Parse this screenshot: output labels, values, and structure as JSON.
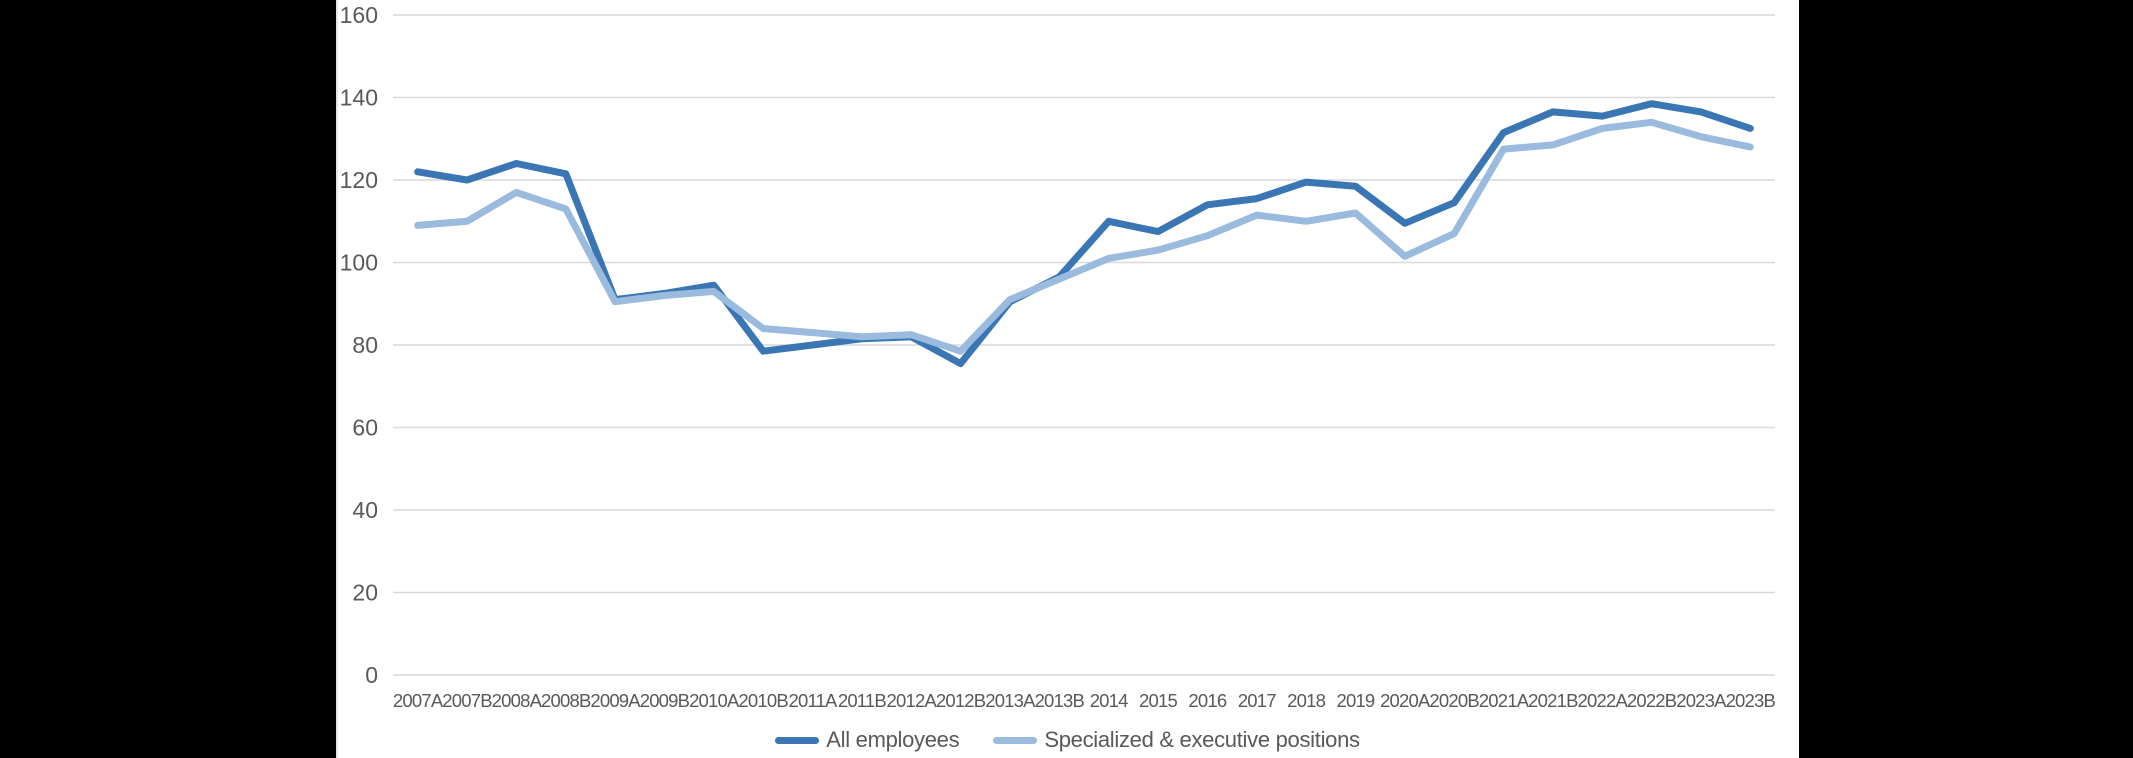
{
  "canvas": {
    "background_color": "#000000",
    "panel_background_color": "#ffffff"
  },
  "chart_data": {
    "type": "line",
    "title": "",
    "xlabel": "",
    "ylabel": "",
    "ylim": [
      0,
      160
    ],
    "yticks": [
      0,
      20,
      40,
      60,
      80,
      100,
      120,
      140,
      160
    ],
    "grid": true,
    "gridline_color": "#d9d9d9",
    "axis_text_color": "#595959",
    "legend_position": "bottom-center",
    "categories": [
      "2007A",
      "2007B",
      "2008A",
      "2008B",
      "2009A",
      "2009B",
      "2010A",
      "2010B",
      "2011A",
      "2011B",
      "2012A",
      "2012B",
      "2013A",
      "2013B",
      "2014",
      "2015",
      "2016",
      "2017",
      "2018",
      "2019",
      "2020A",
      "2020B",
      "2021A",
      "2021B",
      "2022A",
      "2022B",
      "2023A",
      "2023B"
    ],
    "series": [
      {
        "name": "All employees",
        "color": "#3a76b4",
        "values": [
          122,
          120,
          124,
          121.5,
          91,
          92.5,
          94.5,
          78.5,
          80,
          81.5,
          82,
          75.5,
          90.5,
          96.5,
          110,
          107.5,
          114,
          115.5,
          119.5,
          118.5,
          109.5,
          114.5,
          131.5,
          136.5,
          135.5,
          138.5,
          136.5,
          132.5
        ]
      },
      {
        "name": "Specialized & executive positions",
        "color": "#9abade",
        "values": [
          109,
          110,
          117,
          113,
          90.5,
          92,
          93,
          84,
          83,
          82,
          82.5,
          78.5,
          91,
          96,
          101,
          103,
          106.5,
          111.5,
          110,
          112,
          101.5,
          107,
          127.5,
          128.5,
          132.5,
          134,
          130.5,
          128
        ]
      }
    ]
  }
}
